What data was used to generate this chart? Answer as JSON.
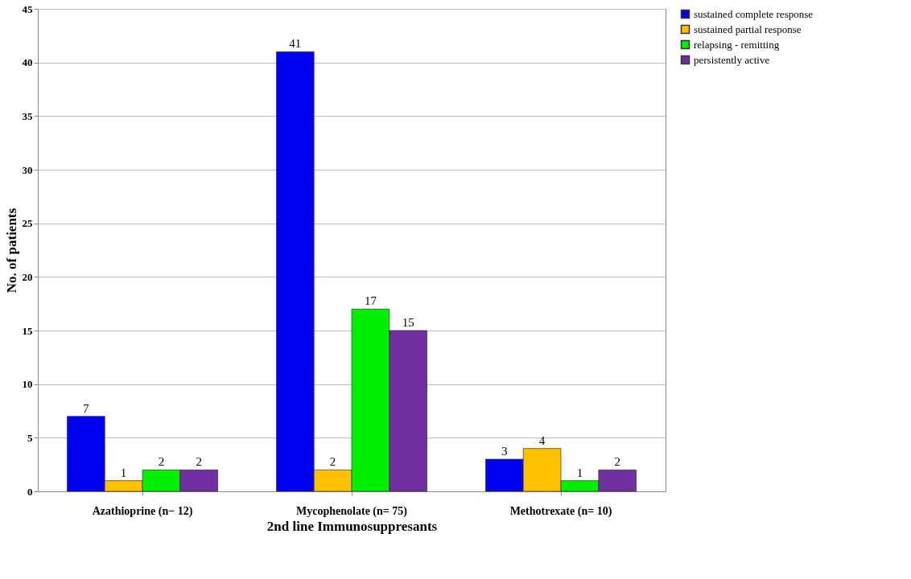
{
  "chart_data": {
    "type": "bar",
    "xlabel": "2nd line Immunosuppresants",
    "ylabel": "No. of patients",
    "categories": [
      "Azathioprine   (n− 12)",
      "Mycophenolate  (n= 75)",
      "Methotrexate  (n= 10)"
    ],
    "series": [
      {
        "name": "sustained complete response",
        "color": "#0000ee",
        "values": [
          7,
          41,
          3
        ]
      },
      {
        "name": " sustained partial response",
        "color": "#ffc000",
        "values": [
          1,
          2,
          4
        ]
      },
      {
        "name": "relapsing - remitting",
        "color": "#00ee00",
        "values": [
          2,
          17,
          1
        ]
      },
      {
        "name": "persistently active",
        "color": "#7030a0",
        "values": [
          2,
          15,
          2
        ]
      }
    ],
    "ylim": [
      0,
      45
    ],
    "yticks": [
      0,
      5,
      10,
      15,
      20,
      25,
      30,
      35,
      40,
      45
    ],
    "grid": "y",
    "legend": "right",
    "data_labels": true
  }
}
